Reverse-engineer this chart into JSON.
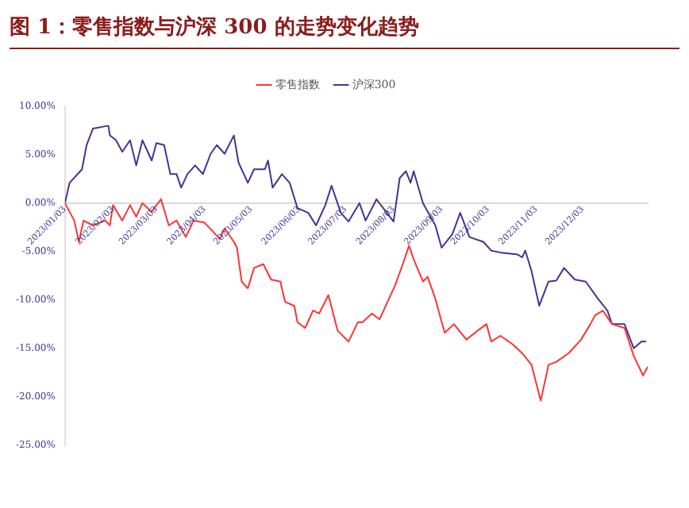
{
  "chart_data": {
    "type": "line",
    "title": "图 1：零售指数与沪深 300 的走势变化趋势",
    "legend": "top",
    "grid": false,
    "xlim": [
      "2023-01-03",
      "2024-01-14"
    ],
    "xticks": [
      {
        "value": "2023-01-03",
        "label": "2023/01/03"
      },
      {
        "value": "2023-02-03",
        "label": "2023/02/03"
      },
      {
        "value": "2023-03-03",
        "label": "2023/03/03"
      },
      {
        "value": "2023-04-03",
        "label": "2023/04/03"
      },
      {
        "value": "2023-05-03",
        "label": "2023/05/03"
      },
      {
        "value": "2023-06-03",
        "label": "2023/06/03"
      },
      {
        "value": "2023-07-03",
        "label": "2023/07/03"
      },
      {
        "value": "2023-08-03",
        "label": "2023/08/03"
      },
      {
        "value": "2023-09-03",
        "label": "2023/09/03"
      },
      {
        "value": "2023-10-03",
        "label": "2023/10/03"
      },
      {
        "value": "2023-11-03",
        "label": "2023/11/03"
      },
      {
        "value": "2023-12-03",
        "label": "2023/12/03"
      }
    ],
    "ylim": [
      -25,
      10
    ],
    "yticks": [
      {
        "value": -25,
        "label": "-25.00%"
      },
      {
        "value": -20,
        "label": "-20.00%"
      },
      {
        "value": -15,
        "label": "-15.00%"
      },
      {
        "value": -10,
        "label": "-10.00%"
      },
      {
        "value": -5,
        "label": "-5.00%"
      },
      {
        "value": 0,
        "label": "0.00%"
      },
      {
        "value": 5,
        "label": "5.00%"
      },
      {
        "value": 10,
        "label": "10.00%"
      }
    ],
    "series": [
      {
        "name": "零售指数",
        "color": "#ff3333",
        "x": [
          "2023-01-03",
          "2023-01-09",
          "2023-01-12",
          "2023-01-15",
          "2023-01-21",
          "2023-01-29",
          "2023-02-01",
          "2023-02-03",
          "2023-02-09",
          "2023-02-14",
          "2023-02-18",
          "2023-02-22",
          "2023-02-28",
          "2023-03-03",
          "2023-03-06",
          "2023-03-11",
          "2023-03-16",
          "2023-03-22",
          "2023-03-27",
          "2023-04-03",
          "2023-04-13",
          "2023-04-16",
          "2023-04-22",
          "2023-04-24",
          "2023-04-27",
          "2023-05-01",
          "2023-05-05",
          "2023-05-11",
          "2023-05-16",
          "2023-05-22",
          "2023-05-25",
          "2023-05-31",
          "2023-06-02",
          "2023-06-07",
          "2023-06-12",
          "2023-06-16",
          "2023-06-22",
          "2023-06-28",
          "2023-07-05",
          "2023-07-11",
          "2023-07-14",
          "2023-07-20",
          "2023-07-25",
          "2023-07-31",
          "2023-08-04",
          "2023-08-09",
          "2023-08-13",
          "2023-08-16",
          "2023-08-22",
          "2023-08-25",
          "2023-08-30",
          "2023-09-05",
          "2023-09-11",
          "2023-09-19",
          "2023-09-26",
          "2023-10-02",
          "2023-10-05",
          "2023-10-11",
          "2023-10-19",
          "2023-10-25",
          "2023-10-31",
          "2023-11-06",
          "2023-11-11",
          "2023-11-16",
          "2023-11-24",
          "2023-12-02",
          "2023-12-08",
          "2023-12-11",
          "2023-12-16",
          "2023-12-22",
          "2023-12-30",
          "2024-01-05",
          "2024-01-11",
          "2024-01-14"
        ],
        "values": [
          0,
          -1.8,
          -4.0,
          -1.8,
          -2.3,
          -1.8,
          -2.3,
          -0.2,
          -1.8,
          -0.2,
          -1.4,
          0,
          -0.9,
          -0.2,
          0.4,
          -2.3,
          -1.8,
          -3.5,
          -1.8,
          -2.0,
          -3.7,
          -2.6,
          -4.0,
          -4.6,
          -8.1,
          -8.8,
          -6.7,
          -6.3,
          -7.9,
          -8.1,
          -10.2,
          -10.6,
          -12.3,
          -12.9,
          -11.1,
          -11.4,
          -9.5,
          -13.2,
          -14.3,
          -12.3,
          -12.3,
          -11.4,
          -12.0,
          -9.9,
          -8.5,
          -6.3,
          -4.4,
          -5.8,
          -8.1,
          -7.6,
          -9.9,
          -13.4,
          -12.5,
          -14.1,
          -13.2,
          -12.5,
          -14.3,
          -13.7,
          -14.6,
          -15.5,
          -16.7,
          -20.4,
          -16.7,
          -16.4,
          -15.5,
          -14.1,
          -12.5,
          -11.6,
          -11.1,
          -12.5,
          -12.9,
          -15.8,
          -17.8,
          -16.9
        ]
      },
      {
        "name": "沪深300",
        "color": "#3d3596",
        "x": [
          "2023-01-03",
          "2023-01-06",
          "2023-01-14",
          "2023-01-17",
          "2023-01-21",
          "2023-01-31",
          "2023-02-01",
          "2023-02-05",
          "2023-02-09",
          "2023-02-14",
          "2023-02-18",
          "2023-02-22",
          "2023-02-28",
          "2023-03-03",
          "2023-03-08",
          "2023-03-12",
          "2023-03-16",
          "2023-03-19",
          "2023-03-23",
          "2023-03-28",
          "2023-04-02",
          "2023-04-07",
          "2023-04-11",
          "2023-04-16",
          "2023-04-22",
          "2023-04-25",
          "2023-05-01",
          "2023-05-05",
          "2023-05-12",
          "2023-05-14",
          "2023-05-17",
          "2023-05-23",
          "2023-05-28",
          "2023-06-02",
          "2023-06-09",
          "2023-06-14",
          "2023-06-20",
          "2023-06-24",
          "2023-06-30",
          "2023-07-05",
          "2023-07-12",
          "2023-07-16",
          "2023-07-23",
          "2023-08-03",
          "2023-08-07",
          "2023-08-11",
          "2023-08-14",
          "2023-08-16",
          "2023-08-22",
          "2023-08-30",
          "2023-09-03",
          "2023-09-10",
          "2023-09-15",
          "2023-09-21",
          "2023-09-30",
          "2023-10-05",
          "2023-10-11",
          "2023-10-22",
          "2023-10-25",
          "2023-10-27",
          "2023-10-31",
          "2023-11-05",
          "2023-11-11",
          "2023-11-16",
          "2023-11-21",
          "2023-11-28",
          "2023-12-05",
          "2023-12-13",
          "2023-12-19",
          "2023-12-22",
          "2023-12-30",
          "2024-01-05",
          "2024-01-10",
          "2024-01-13"
        ],
        "values": [
          0,
          2.1,
          3.5,
          6.0,
          7.7,
          8.0,
          7.0,
          6.5,
          5.3,
          6.5,
          3.9,
          6.5,
          4.4,
          6.2,
          6.0,
          3.0,
          3.0,
          1.6,
          3.0,
          3.9,
          3.0,
          5.1,
          6.0,
          5.1,
          7.0,
          4.2,
          2.1,
          3.5,
          3.5,
          4.4,
          1.6,
          3.0,
          2.1,
          -0.5,
          -1.0,
          -2.3,
          -0.2,
          1.8,
          -1.0,
          -1.9,
          0,
          -1.8,
          0.4,
          -1.9,
          2.6,
          3.3,
          2.1,
          3.3,
          0,
          -2.3,
          -4.6,
          -3.2,
          -1.0,
          -3.5,
          -4.0,
          -4.9,
          -5.1,
          -5.3,
          -5.6,
          -4.9,
          -7.0,
          -10.6,
          -8.1,
          -8.0,
          -6.7,
          -7.9,
          -8.1,
          -9.9,
          -11.1,
          -12.5,
          -12.5,
          -15.0,
          -14.3,
          -14.3
        ]
      }
    ]
  }
}
